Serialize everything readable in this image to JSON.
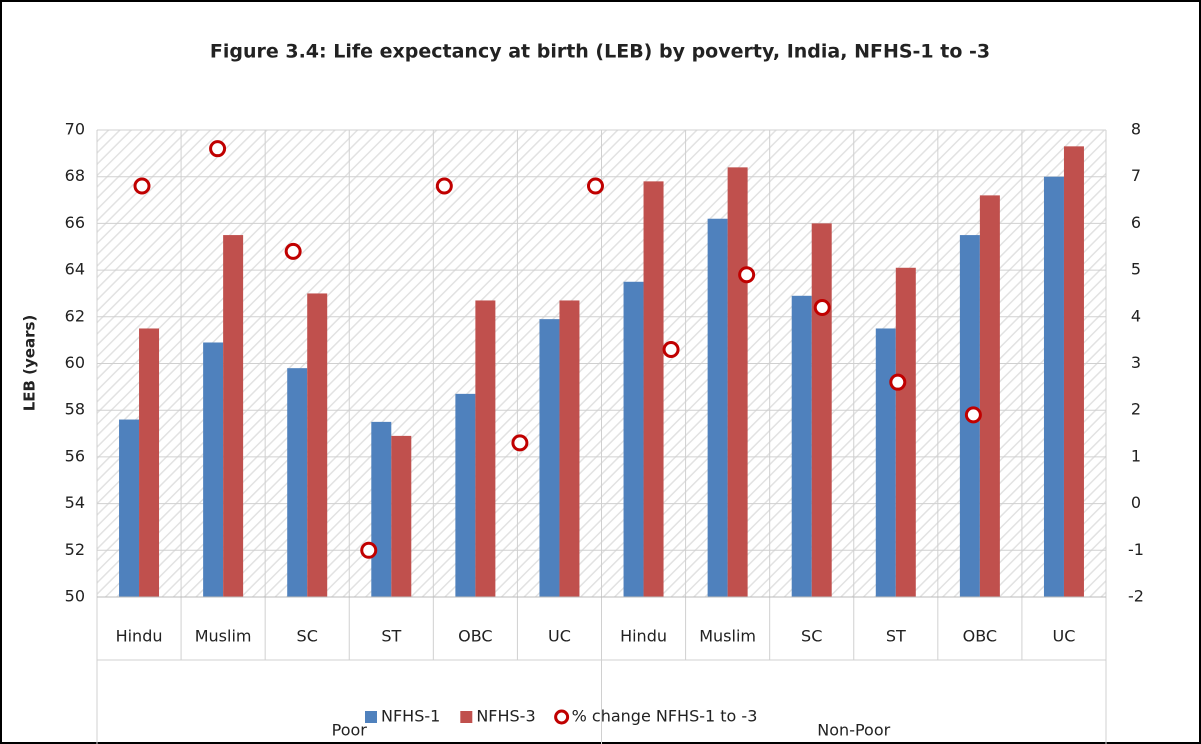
{
  "chart_data": {
    "type": "bar",
    "title": "Figure 3.4: Life expectancy at birth (LEB) by poverty, India, NFHS-1 to -3",
    "y_label": "LEB (years)",
    "categories": [
      "Hindu",
      "Muslim",
      "SC",
      "ST",
      "OBC",
      "UC",
      "Hindu",
      "Muslim",
      "SC",
      "ST",
      "OBC",
      "UC"
    ],
    "groups": [
      "Poor",
      "Non-Poor"
    ],
    "series": [
      {
        "name": "NFHS-1",
        "color": "#4f81bd",
        "values": [
          57.6,
          60.9,
          59.8,
          57.5,
          58.7,
          61.9,
          63.5,
          66.2,
          62.9,
          61.5,
          65.5,
          68.0
        ]
      },
      {
        "name": "NFHS-3",
        "color": "#c0504d",
        "values": [
          61.5,
          65.5,
          63.0,
          56.9,
          62.7,
          62.7,
          67.8,
          68.4,
          66.0,
          64.1,
          67.2,
          69.3
        ]
      },
      {
        "name": "% change NFHS-1 to -3",
        "color": "#c00000",
        "axis": "y2",
        "values": [
          6.8,
          7.6,
          5.4,
          -1.0,
          6.8,
          1.3,
          6.8,
          3.3,
          4.9,
          4.2,
          2.6,
          1.9
        ]
      }
    ],
    "ylim": [
      50,
      70
    ],
    "yticks": [
      50,
      52,
      54,
      56,
      58,
      60,
      62,
      64,
      66,
      68,
      70
    ],
    "y2lim": [
      -2,
      8
    ],
    "y2ticks": [
      -2,
      -1,
      0,
      1,
      2,
      3,
      4,
      5,
      6,
      7,
      8
    ],
    "grid": true,
    "legend": "bottom"
  }
}
